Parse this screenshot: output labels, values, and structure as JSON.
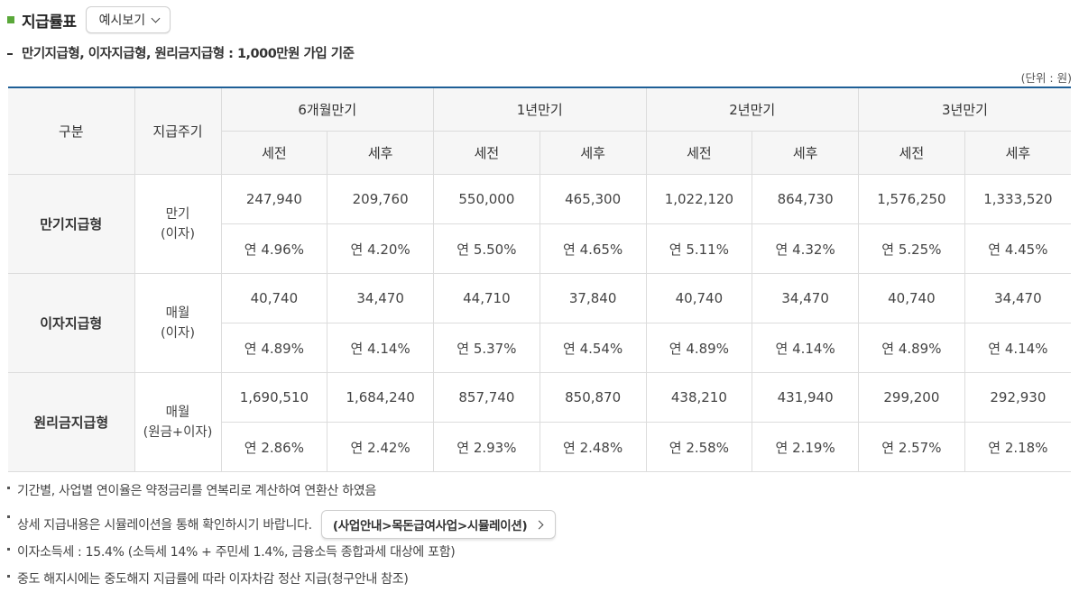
{
  "header": {
    "title": "지급률표",
    "example_button": "예시보기"
  },
  "subtitle": "만기지급형, 이자지급형, 원리금지급형 : 1,000만원 가입 기준",
  "unit": "(단위 : 원)",
  "table": {
    "col_category": "구분",
    "col_cycle": "지급주기",
    "periods": [
      "6개월만기",
      "1년만기",
      "2년만기",
      "3년만기"
    ],
    "pre_tax": "세전",
    "post_tax": "세후",
    "rows": [
      {
        "name": "만기지급형",
        "cycle_line1": "만기",
        "cycle_line2": "(이자)",
        "amounts": [
          "247,940",
          "209,760",
          "550,000",
          "465,300",
          "1,022,120",
          "864,730",
          "1,576,250",
          "1,333,520"
        ],
        "rates": [
          "연 4.96%",
          "연 4.20%",
          "연 5.50%",
          "연 4.65%",
          "연 5.11%",
          "연 4.32%",
          "연 5.25%",
          "연 4.45%"
        ]
      },
      {
        "name": "이자지급형",
        "cycle_line1": "매월",
        "cycle_line2": "(이자)",
        "amounts": [
          "40,740",
          "34,470",
          "44,710",
          "37,840",
          "40,740",
          "34,470",
          "40,740",
          "34,470"
        ],
        "rates": [
          "연 4.89%",
          "연 4.14%",
          "연 5.37%",
          "연 4.54%",
          "연 4.89%",
          "연 4.14%",
          "연 4.89%",
          "연 4.14%"
        ]
      },
      {
        "name": "원리금지급형",
        "cycle_line1": "매월",
        "cycle_line2": "(원금+이자)",
        "amounts": [
          "1,690,510",
          "1,684,240",
          "857,740",
          "850,870",
          "438,210",
          "431,940",
          "299,200",
          "292,930"
        ],
        "rates": [
          "연 2.86%",
          "연 2.42%",
          "연 2.93%",
          "연 2.48%",
          "연 2.58%",
          "연 2.19%",
          "연 2.57%",
          "연 2.18%"
        ]
      }
    ]
  },
  "notes": {
    "n1": "기간별, 사업별 연이율은 약정금리를 연복리로 계산하여 연환산 하였음",
    "n2": "상세 지급내용은 시뮬레이션을 통해 확인하시기 바랍니다.",
    "n2_link": "(사업안내>목돈급여사업>시뮬레이션)",
    "n3": "이자소득세 : 15.4% (소득세 14% + 주민세 1.4%, 금융소득 종합과세 대상에 포함)",
    "n4": "중도 해지시에는 중도해지 지급률에 따라 이자차감 정산 지급(청구안내 참조)"
  },
  "colors": {
    "accent_green": "#5aa83a",
    "table_top_border": "#1e5f96"
  }
}
